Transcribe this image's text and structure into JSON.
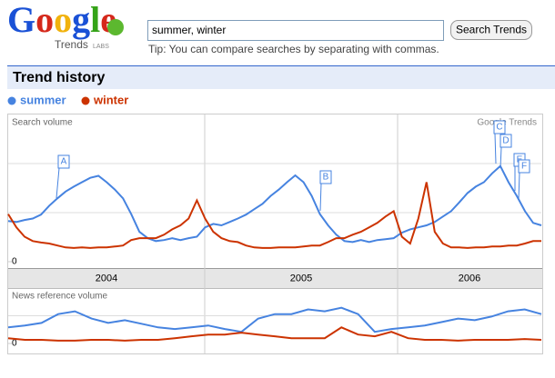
{
  "header": {
    "logo": "Google",
    "product": "Trends",
    "labs": "LABS",
    "query": "summer, winter",
    "button": "Search Trends",
    "tip": "Tip: You can compare searches by separating with commas."
  },
  "section_title": "Trend history",
  "chart_data": [
    {
      "type": "line",
      "title": "Search volume",
      "watermark": "Google Trends",
      "ylim": [
        0,
        3
      ],
      "yticks": [
        0
      ],
      "years": [
        "2004",
        "2005",
        "2006"
      ],
      "annotations": [
        "A",
        "B",
        "C",
        "D",
        "E",
        "F"
      ],
      "series": [
        {
          "name": "summer",
          "color": "#4683e0",
          "values": [
            0.83,
            0.81,
            0.85,
            0.88,
            0.96,
            1.14,
            1.29,
            1.43,
            1.53,
            1.62,
            1.71,
            1.75,
            1.62,
            1.47,
            1.29,
            0.97,
            0.61,
            0.48,
            0.42,
            0.44,
            0.48,
            0.44,
            0.48,
            0.51,
            0.7,
            0.77,
            0.74,
            0.81,
            0.88,
            0.96,
            1.07,
            1.18,
            1.34,
            1.47,
            1.62,
            1.76,
            1.62,
            1.34,
            0.97,
            0.74,
            0.55,
            0.42,
            0.4,
            0.44,
            0.4,
            0.44,
            0.46,
            0.48,
            0.59,
            0.66,
            0.7,
            0.74,
            0.81,
            0.92,
            1.03,
            1.21,
            1.4,
            1.53,
            1.62,
            1.8,
            1.95,
            1.62,
            1.34,
            1.03,
            0.79,
            0.74
          ]
        },
        {
          "name": "winter",
          "color": "#cc3300",
          "values": [
            0.97,
            0.7,
            0.51,
            0.42,
            0.39,
            0.37,
            0.33,
            0.29,
            0.28,
            0.29,
            0.28,
            0.29,
            0.29,
            0.31,
            0.33,
            0.44,
            0.48,
            0.48,
            0.48,
            0.55,
            0.66,
            0.74,
            0.88,
            1.25,
            0.88,
            0.61,
            0.48,
            0.42,
            0.4,
            0.33,
            0.29,
            0.28,
            0.28,
            0.29,
            0.29,
            0.29,
            0.31,
            0.33,
            0.33,
            0.4,
            0.48,
            0.48,
            0.55,
            0.61,
            0.7,
            0.79,
            0.92,
            1.03,
            0.51,
            0.37,
            0.88,
            1.62,
            0.61,
            0.37,
            0.29,
            0.29,
            0.28,
            0.29,
            0.29,
            0.31,
            0.31,
            0.33,
            0.33,
            0.37,
            0.42,
            0.42
          ]
        }
      ]
    },
    {
      "type": "line",
      "title": "News reference volume",
      "ylim": [
        0,
        2
      ],
      "yticks": [
        0
      ],
      "series": [
        {
          "color": "#4683e0",
          "values": [
            0.58,
            0.65,
            0.74,
            1.06,
            1.16,
            0.9,
            0.74,
            0.84,
            0.71,
            0.58,
            0.52,
            0.58,
            0.65,
            0.52,
            0.42,
            0.9,
            1.06,
            1.06,
            1.23,
            1.16,
            1.29,
            1.06,
            0.42,
            0.52,
            0.58,
            0.65,
            0.77,
            0.9,
            0.84,
            0.97,
            1.16,
            1.23,
            1.06
          ]
        },
        {
          "color": "#cc3300",
          "values": [
            0.19,
            0.13,
            0.13,
            0.1,
            0.1,
            0.13,
            0.13,
            0.1,
            0.13,
            0.13,
            0.19,
            0.26,
            0.32,
            0.32,
            0.39,
            0.32,
            0.26,
            0.19,
            0.19,
            0.19,
            0.58,
            0.32,
            0.26,
            0.42,
            0.19,
            0.13,
            0.13,
            0.1,
            0.13,
            0.13,
            0.13,
            0.16,
            0.13
          ]
        }
      ]
    }
  ]
}
